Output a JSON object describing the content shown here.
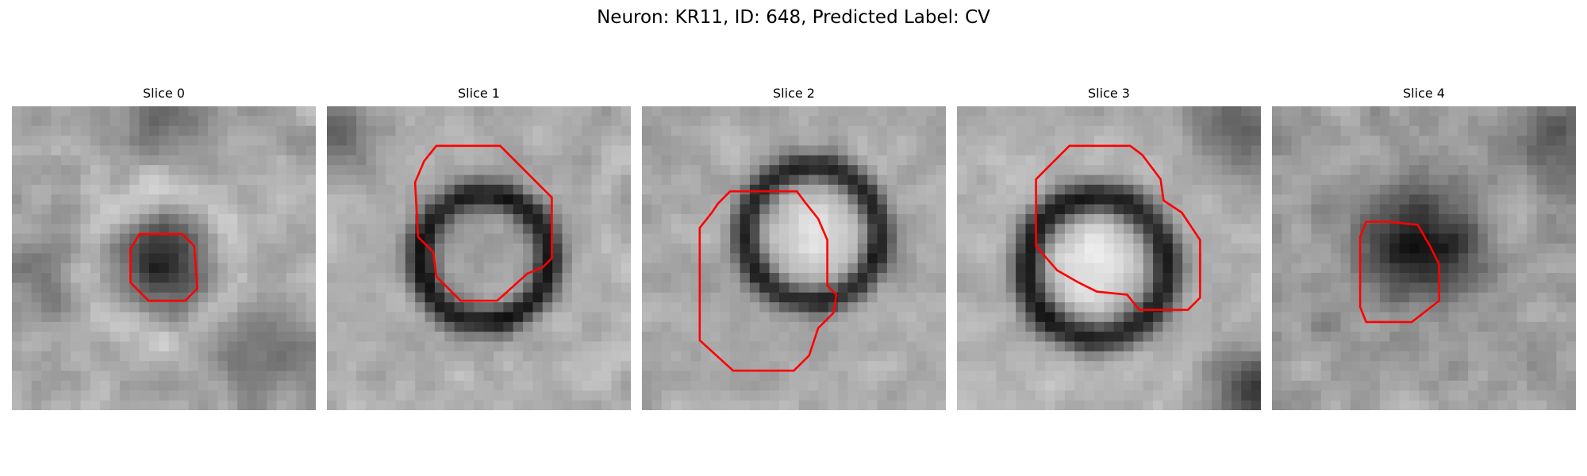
{
  "figure": {
    "title": "Neuron: KR11, ID: 648, Predicted Label: CV"
  },
  "colors": {
    "contour": "#ff0000",
    "background": "#ffffff"
  },
  "panels": [
    {
      "title": "Slice 0",
      "image": "grayscale micrograph, dark ring-shaped cell center with red outline"
    },
    {
      "title": "Slice 1",
      "image": "grayscale micrograph, dark circular ring with red outline"
    },
    {
      "title": "Slice 2",
      "image": "grayscale micrograph, dark circular ring with bright center and red outline"
    },
    {
      "title": "Slice 3",
      "image": "grayscale micrograph, dark circular ring with bright center and red outline"
    },
    {
      "title": "Slice 4",
      "image": "grayscale micrograph, dark diffuse blob with red outline"
    }
  ]
}
